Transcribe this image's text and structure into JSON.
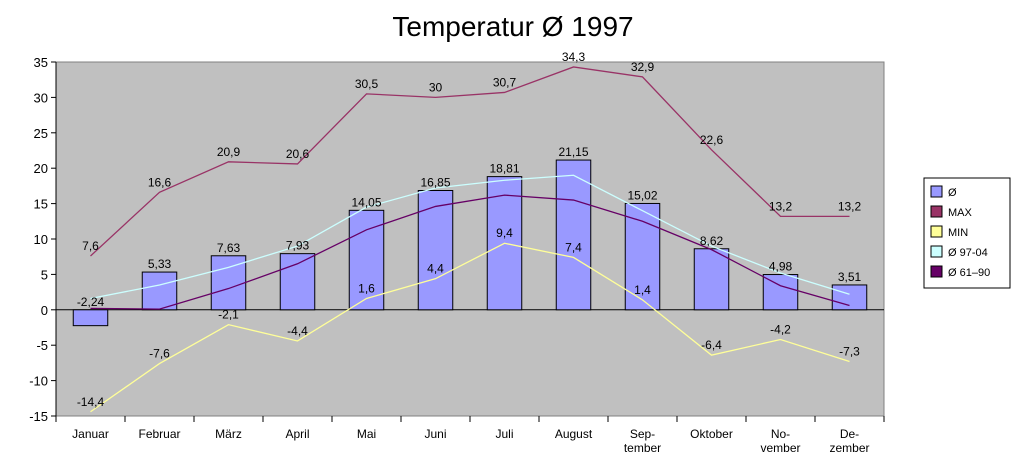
{
  "chart_data": {
    "type": "bar",
    "title": "Temperatur Ø 1997",
    "categories": [
      [
        "Januar"
      ],
      [
        "Februar"
      ],
      [
        "März"
      ],
      [
        "April"
      ],
      [
        "Mai"
      ],
      [
        "Juni"
      ],
      [
        "Juli"
      ],
      [
        "August"
      ],
      [
        "Sep-",
        "tember"
      ],
      [
        "Oktober"
      ],
      [
        "No-",
        "vember"
      ],
      [
        "De-",
        "zember"
      ]
    ],
    "ylim": [
      -15,
      35
    ],
    "yticks": [
      -15,
      -10,
      -5,
      0,
      5,
      10,
      15,
      20,
      25,
      30,
      35
    ],
    "grid": false,
    "legend_position": "right",
    "series": [
      {
        "name": "Ø",
        "kind": "bar",
        "color": "#9999ff",
        "values": [
          -2.24,
          5.33,
          7.63,
          7.93,
          14.05,
          16.85,
          18.81,
          21.15,
          15.02,
          8.62,
          4.98,
          3.51
        ],
        "labels": [
          "-2,24",
          "5,33",
          "7,63",
          "7,93",
          "14,05",
          "16,85",
          "18,81",
          "21,15",
          "15,02",
          "8,62",
          "4,98",
          "3,51"
        ]
      },
      {
        "name": "MAX",
        "kind": "line",
        "color": "#993366",
        "values": [
          7.6,
          16.6,
          20.9,
          20.6,
          30.5,
          30,
          30.7,
          34.3,
          32.9,
          22.6,
          13.2,
          13.2
        ],
        "labels": [
          "7,6",
          "16,6",
          "20,9",
          "20,6",
          "30,5",
          "30",
          "30,7",
          "34,3",
          "32,9",
          "22,6",
          "13,2",
          "13,2"
        ]
      },
      {
        "name": "MIN",
        "kind": "line",
        "color": "#ffff99",
        "values": [
          -14.4,
          -7.6,
          -2.1,
          -4.4,
          1.6,
          4.4,
          9.4,
          7.4,
          1.4,
          -6.4,
          -4.2,
          -7.3
        ],
        "labels": [
          "-14,4",
          "-7,6",
          "-2,1",
          "-4,4",
          "1,6",
          "4,4",
          "9,4",
          "7,4",
          "1,4",
          "-6,4",
          "-4,2",
          "-7,3"
        ]
      },
      {
        "name": "Ø 97-04",
        "kind": "line",
        "color": "#ccffff",
        "values": [
          1.6,
          3.5,
          6.0,
          9.0,
          14.5,
          17.2,
          18.3,
          19.0,
          14.0,
          9.0,
          5.2,
          2.2
        ]
      },
      {
        "name": "Ø 61–90",
        "kind": "line",
        "color": "#660066",
        "values": [
          0.2,
          0.1,
          3.0,
          6.5,
          11.3,
          14.6,
          16.2,
          15.5,
          12.5,
          8.5,
          3.4,
          0.6
        ]
      }
    ]
  }
}
